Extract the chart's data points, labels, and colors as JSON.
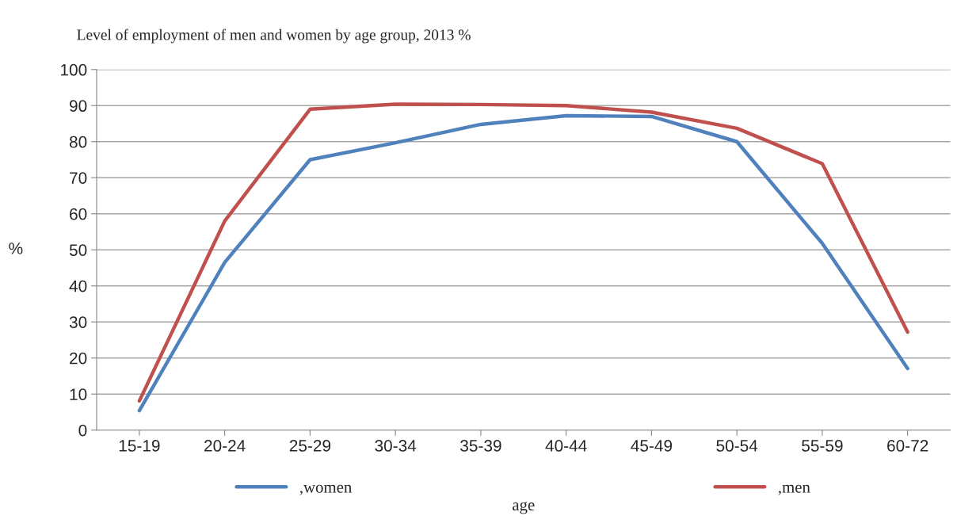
{
  "chart_data": {
    "type": "line",
    "title": "Level of employment of men and women by age group, 2013 %",
    "xlabel": "age",
    "ylabel": "%",
    "categories": [
      "15-19",
      "20-24",
      "25-29",
      "30-34",
      "35-39",
      "40-44",
      "45-49",
      "50-54",
      "55-59",
      "60-72"
    ],
    "series": [
      {
        "name": ",women",
        "color": "#4f81bd",
        "values": [
          5.4,
          46.5,
          75,
          79.7,
          84.8,
          87.2,
          87,
          80,
          51.8,
          17.1
        ]
      },
      {
        "name": ",men",
        "color": "#c0504d",
        "values": [
          8.1,
          58,
          89,
          90.4,
          90.3,
          90,
          88.2,
          83.7,
          73.9,
          27.2
        ]
      }
    ],
    "ylim": [
      0,
      100
    ],
    "yticks": [
      0,
      10,
      20,
      30,
      40,
      50,
      60,
      70,
      80,
      90,
      100
    ],
    "grid": "y",
    "legend": "bottom",
    "marker": "none",
    "line_style": "solid"
  }
}
